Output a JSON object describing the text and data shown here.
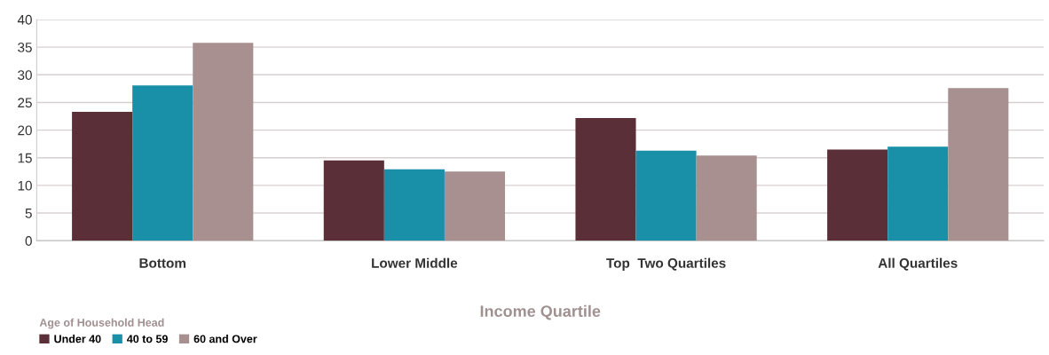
{
  "chart_data": {
    "type": "bar",
    "xlabel": "Income Quartile",
    "legend_title": "Age of Household Head",
    "categories": [
      "Bottom",
      "Lower Middle",
      "Top  Two Quartiles",
      "All Quartiles"
    ],
    "series": [
      {
        "name": "Under 40",
        "color": "#5a2f38",
        "values": [
          23.3,
          14.5,
          22.2,
          16.5
        ]
      },
      {
        "name": "40 to 59",
        "color": "#1a8fa8",
        "values": [
          28.1,
          12.9,
          16.3,
          17.0
        ]
      },
      {
        "name": "60 and Over",
        "color": "#a89090",
        "values": [
          35.8,
          12.5,
          15.4,
          27.6
        ]
      }
    ],
    "ylim": [
      0,
      40
    ],
    "yticks": [
      0,
      5,
      10,
      15,
      20,
      25,
      30,
      35,
      40
    ],
    "grid": "y",
    "legend": "bottom left"
  }
}
